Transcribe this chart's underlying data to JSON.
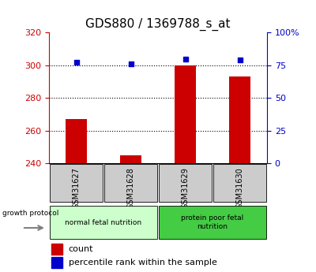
{
  "title": "GDS880 / 1369788_s_at",
  "samples": [
    "GSM31627",
    "GSM31628",
    "GSM31629",
    "GSM31630"
  ],
  "counts": [
    267,
    245,
    300,
    293
  ],
  "percentiles": [
    77,
    76,
    80,
    79
  ],
  "ylim_left": [
    240,
    320
  ],
  "ylim_right": [
    0,
    100
  ],
  "left_ticks": [
    240,
    260,
    280,
    300,
    320
  ],
  "right_ticks": [
    0,
    25,
    50,
    75,
    100
  ],
  "bar_color": "#cc0000",
  "dot_color": "#0000cc",
  "group1_label": "normal fetal nutrition",
  "group2_label": "protein poor fetal\nnutrition",
  "group1_bg": "#ccffcc",
  "group2_bg": "#44cc44",
  "sample_bg": "#cccccc",
  "protocol_label": "growth protocol",
  "legend_count": "count",
  "legend_pct": "percentile rank within the sample",
  "title_fontsize": 11,
  "tick_fontsize": 8,
  "legend_fontsize": 8
}
